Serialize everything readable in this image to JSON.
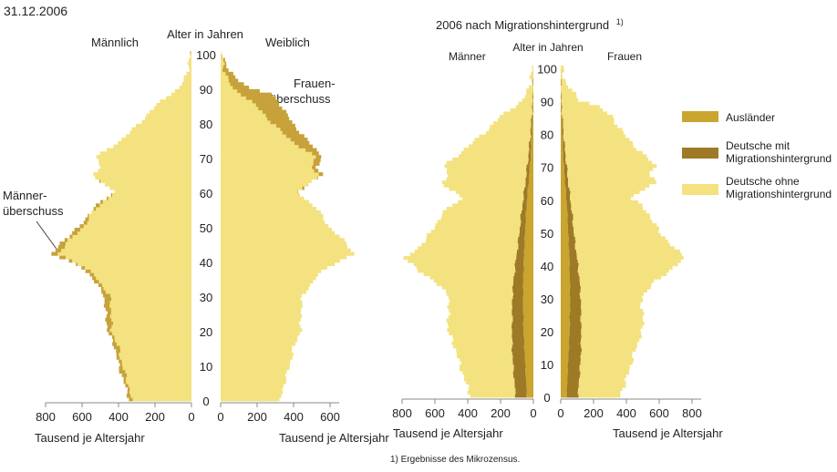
{
  "page": {
    "date": "31.12.2006",
    "footnote": "1) Ergebnisse des Mikrozensus."
  },
  "colors": {
    "auslaender": "#caa52f",
    "deutsche_mit": "#9e7a26",
    "deutsche_ohne": "#f3e27f",
    "ueberschuss": "#c7a23a",
    "axis": "#888888"
  },
  "chart_data": [
    {
      "type": "bar",
      "subtype": "population-pyramid",
      "title": "",
      "left_label": "Männlich",
      "right_label": "Weiblich",
      "center_label": "Alter in Jahren",
      "xlabel_left": "Tausend je Altersjahr",
      "xlabel_right": "Tausend je Altersjahr",
      "annotations": [
        "Männer-\nüberschuss",
        "Frauen-\nüberschuss"
      ],
      "age_ticks": [
        0,
        10,
        20,
        30,
        40,
        50,
        60,
        70,
        80,
        90,
        100
      ],
      "x_ticks_left": [
        800,
        600,
        400,
        200,
        0
      ],
      "x_ticks_right": [
        0,
        200,
        400,
        600
      ],
      "xlim": [
        0,
        800
      ],
      "age_keypoints": [
        0,
        5,
        10,
        15,
        20,
        25,
        30,
        35,
        38,
        42,
        45,
        50,
        55,
        58,
        60,
        62,
        65,
        67,
        70,
        75,
        80,
        85,
        88,
        90,
        95,
        100
      ],
      "male_keypoints": [
        340,
        370,
        400,
        420,
        460,
        470,
        480,
        540,
        600,
        760,
        720,
        610,
        540,
        470,
        420,
        480,
        540,
        500,
        520,
        380,
        280,
        190,
        120,
        60,
        20,
        5
      ],
      "female_keypoints": [
        330,
        350,
        380,
        400,
        440,
        440,
        450,
        520,
        580,
        730,
        690,
        590,
        530,
        460,
        420,
        480,
        560,
        520,
        560,
        470,
        390,
        330,
        280,
        150,
        40,
        10
      ],
      "male_surplus_ages": [
        35,
        50
      ],
      "female_surplus_ages": [
        65,
        100
      ]
    },
    {
      "type": "bar",
      "subtype": "population-pyramid",
      "title": "2006 nach Migrationshintergrund",
      "title_superscript": "1)",
      "left_label": "Männer",
      "right_label": "Frauen",
      "center_label": "Alter in Jahren",
      "xlabel_left": "Tausend je Altersjahr",
      "xlabel_right": "Tausend je Altersjahr",
      "age_ticks": [
        0,
        10,
        20,
        30,
        40,
        50,
        60,
        70,
        80,
        90,
        100
      ],
      "x_ticks_left": [
        800,
        600,
        400,
        200,
        0
      ],
      "x_ticks_right": [
        0,
        200,
        400,
        600,
        800
      ],
      "xlim": [
        0,
        800
      ],
      "series": [
        {
          "name": "Ausländer",
          "color_key": "auslaender"
        },
        {
          "name": "Deutsche mit Migrationshintergrund",
          "color_key": "deutsche_mit"
        },
        {
          "name": "Deutsche ohne Migrationshintergrund",
          "color_key": "deutsche_ohne"
        }
      ],
      "legend": [
        {
          "label": "Ausländer",
          "color_key": "auslaender"
        },
        {
          "label": "Deutsche mit Migrationshintergrund",
          "color_key": "deutsche_mit"
        },
        {
          "label": "Deutsche ohne Migrationshintergrund",
          "color_key": "deutsche_ohne"
        }
      ],
      "legend_position": "right",
      "age_keypoints": [
        0,
        5,
        10,
        15,
        20,
        25,
        30,
        35,
        38,
        42,
        45,
        50,
        55,
        58,
        60,
        62,
        65,
        67,
        70,
        75,
        80,
        85,
        88,
        90,
        95,
        100
      ],
      "total_keypoints_male": [
        380,
        420,
        450,
        480,
        520,
        520,
        510,
        600,
        700,
        780,
        700,
        620,
        560,
        500,
        430,
        480,
        560,
        520,
        540,
        420,
        300,
        200,
        120,
        60,
        20,
        5
      ],
      "total_keypoints_female": [
        360,
        400,
        430,
        460,
        500,
        500,
        490,
        580,
        660,
        760,
        690,
        600,
        540,
        490,
        430,
        480,
        580,
        540,
        580,
        470,
        380,
        310,
        230,
        120,
        30,
        8
      ],
      "auslaender_keypoints": [
        40,
        45,
        50,
        55,
        60,
        62,
        63,
        62,
        60,
        58,
        55,
        50,
        45,
        42,
        38,
        35,
        30,
        26,
        22,
        15,
        10,
        6,
        4,
        2,
        1,
        0
      ],
      "deutsche_mit_keypoints": [
        70,
        72,
        75,
        75,
        70,
        68,
        65,
        60,
        55,
        48,
        42,
        35,
        30,
        26,
        24,
        22,
        20,
        18,
        16,
        12,
        8,
        5,
        3,
        2,
        1,
        0
      ]
    }
  ]
}
